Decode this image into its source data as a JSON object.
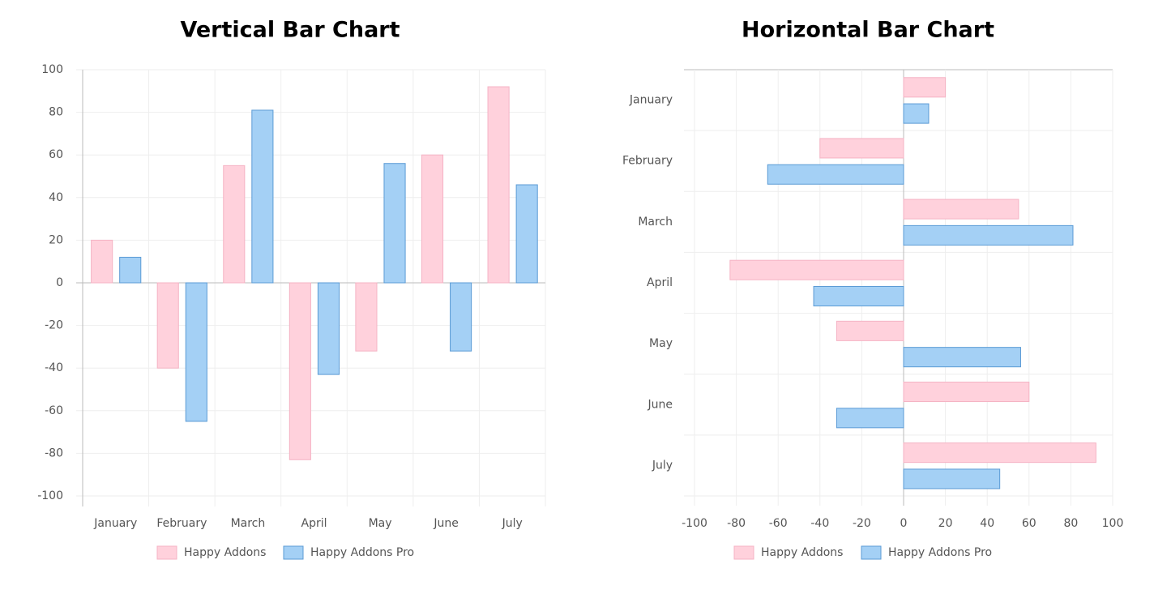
{
  "chart_data": [
    {
      "type": "bar",
      "orientation": "vertical",
      "title": "Vertical Bar Chart",
      "categories": [
        "January",
        "February",
        "March",
        "April",
        "May",
        "June",
        "July"
      ],
      "series": [
        {
          "name": "Happy Addons",
          "color": "#ffd1dc",
          "values": [
            20,
            -40,
            55,
            -83,
            -32,
            60,
            92
          ]
        },
        {
          "name": "Happy Addons Pro",
          "color": "#a4d0f5",
          "values": [
            12,
            -65,
            81,
            -43,
            56,
            -32,
            46
          ]
        }
      ],
      "ylim": [
        -100,
        100
      ],
      "yticks": [
        -100,
        -80,
        -60,
        -40,
        -20,
        0,
        20,
        40,
        60,
        80,
        100
      ],
      "grid": true
    },
    {
      "type": "bar",
      "orientation": "horizontal",
      "title": "Horizontal Bar Chart",
      "categories": [
        "January",
        "February",
        "March",
        "April",
        "May",
        "June",
        "July"
      ],
      "series": [
        {
          "name": "Happy Addons",
          "color": "#ffd1dc",
          "values": [
            20,
            -40,
            55,
            -83,
            -32,
            60,
            92
          ]
        },
        {
          "name": "Happy Addons Pro",
          "color": "#a4d0f5",
          "values": [
            12,
            -65,
            81,
            -43,
            56,
            -32,
            46
          ]
        }
      ],
      "xlim": [
        -100,
        100
      ],
      "xticks": [
        -100,
        -80,
        -60,
        -40,
        -20,
        0,
        20,
        40,
        60,
        80,
        100
      ],
      "grid": true
    }
  ]
}
